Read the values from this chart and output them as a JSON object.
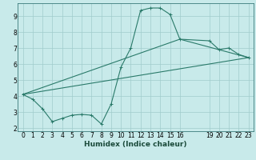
{
  "xlabel": "Humidex (Indice chaleur)",
  "bg_color": "#c8eaea",
  "grid_color": "#a0cccc",
  "line_color": "#2a7a6a",
  "xlim": [
    -0.5,
    23.5
  ],
  "ylim": [
    1.8,
    9.8
  ],
  "xticks": [
    0,
    1,
    2,
    3,
    4,
    5,
    6,
    7,
    8,
    9,
    10,
    11,
    12,
    13,
    14,
    15,
    16,
    19,
    20,
    21,
    22,
    23
  ],
  "yticks": [
    2,
    3,
    4,
    5,
    6,
    7,
    8,
    9
  ],
  "line1_x": [
    0,
    1,
    2,
    3,
    4,
    5,
    6,
    7,
    8,
    9,
    10,
    11,
    12,
    13,
    14,
    15,
    16,
    19,
    20,
    21,
    22,
    23
  ],
  "line1_y": [
    4.1,
    3.8,
    3.2,
    2.4,
    2.6,
    2.8,
    2.85,
    2.8,
    2.25,
    3.5,
    5.8,
    7.0,
    9.35,
    9.5,
    9.5,
    9.1,
    7.55,
    7.45,
    6.9,
    7.0,
    6.6,
    6.4
  ],
  "line2_x": [
    0,
    23
  ],
  "line2_y": [
    4.1,
    6.4
  ],
  "line3_x": [
    0,
    16,
    23
  ],
  "line3_y": [
    4.1,
    7.55,
    6.4
  ],
  "tick_fontsize": 5.5,
  "xlabel_fontsize": 6.5
}
